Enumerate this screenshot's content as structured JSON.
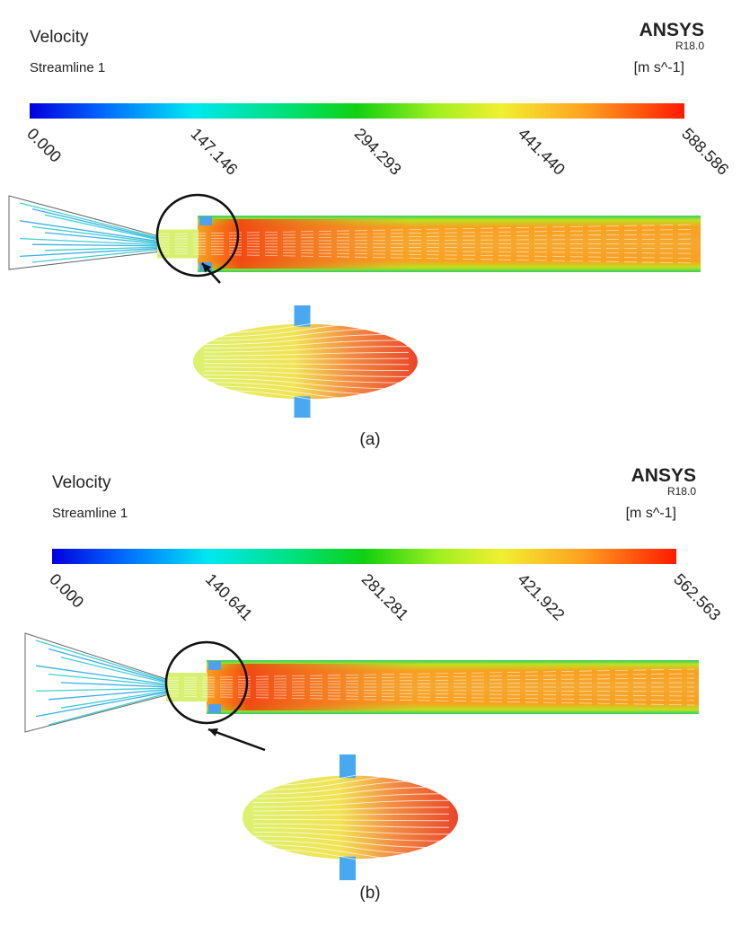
{
  "panels": [
    {
      "title": "Velocity",
      "subtitle": "Streamline 1",
      "brand": "ANSYS",
      "version": "R18.0",
      "unit": "[m s^-1]",
      "ticks": [
        "0.000",
        "147.146",
        "294.293",
        "441.440",
        "588.586"
      ],
      "caption": "(a)"
    },
    {
      "title": "Velocity",
      "subtitle": "Streamline 1",
      "brand": "ANSYS",
      "version": "R18.0",
      "unit": "[m s^-1]",
      "ticks": [
        "0.000",
        "140.641",
        "281.281",
        "421.922",
        "562.563"
      ],
      "caption": "(b)"
    }
  ]
}
